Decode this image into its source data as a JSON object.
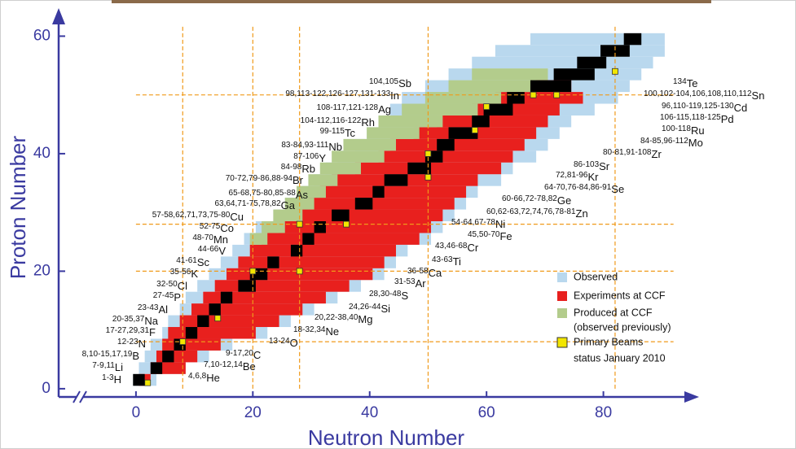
{
  "chart_data": {
    "type": "nuclide",
    "x_label": "Neutron Number",
    "y_label": "Proton Number",
    "xlim": [
      -11,
      94
    ],
    "ylim": [
      -1.4,
      62
    ],
    "xticks": [
      0,
      20,
      40,
      60,
      80
    ],
    "yticks": [
      0,
      20,
      40,
      60
    ],
    "axis_color": "#3a3aa0",
    "z": [
      1,
      3,
      5,
      7,
      9,
      11,
      13,
      15,
      17,
      19,
      21,
      23,
      25,
      27,
      29,
      31,
      33,
      35,
      37,
      39,
      41,
      43,
      45,
      47,
      49,
      51,
      53,
      55,
      57,
      59
    ],
    "series": [
      {
        "name": "Observed",
        "color": "#b9d8ee",
        "ranges": [
          [
            0,
            3
          ],
          [
            1,
            8
          ],
          [
            2,
            12
          ],
          [
            3,
            16
          ],
          [
            5,
            22
          ],
          [
            6,
            26
          ],
          [
            8,
            30
          ],
          [
            9,
            34
          ],
          [
            11,
            38
          ],
          [
            13,
            42
          ],
          [
            15,
            44
          ],
          [
            17,
            46
          ],
          [
            19,
            50
          ],
          [
            21,
            52
          ],
          [
            24,
            54
          ],
          [
            26,
            56
          ],
          [
            29,
            58
          ],
          [
            31,
            62
          ],
          [
            33,
            64
          ],
          [
            35,
            68
          ],
          [
            38,
            70
          ],
          [
            40,
            72
          ],
          [
            42,
            74
          ],
          [
            44,
            78
          ],
          [
            46,
            82
          ],
          [
            50,
            84
          ],
          [
            54,
            86
          ],
          [
            58,
            88
          ],
          [
            62,
            90
          ],
          [
            68,
            90
          ]
        ]
      },
      {
        "name": "Experiments at CCF",
        "color": "#e8201e",
        "ranges": [
          [
            1,
            2
          ],
          [
            3,
            8
          ],
          [
            4,
            10
          ],
          [
            5,
            14
          ],
          [
            6,
            20
          ],
          [
            8,
            24
          ],
          [
            10,
            28
          ],
          [
            12,
            32
          ],
          [
            14,
            36
          ],
          [
            16,
            40
          ],
          [
            18,
            42
          ],
          [
            20,
            44
          ],
          [
            22,
            48
          ],
          [
            25,
            50
          ],
          [
            28,
            52
          ],
          [
            30,
            54
          ],
          [
            32,
            56
          ],
          [
            34,
            58
          ],
          [
            38,
            62
          ],
          [
            42,
            64
          ],
          [
            44,
            66
          ],
          [
            48,
            68
          ],
          [
            52,
            70
          ],
          [
            58,
            72
          ],
          [
            62,
            76
          ],
          [
            68,
            74
          ],
          null,
          null,
          null,
          null
        ]
      },
      {
        "name": "Produced at CCF",
        "color": "#b3cc8c",
        "ranges": [
          null,
          null,
          null,
          null,
          null,
          null,
          null,
          null,
          null,
          null,
          null,
          null,
          [
            20,
            22
          ],
          [
            22,
            25
          ],
          [
            24,
            28
          ],
          [
            26,
            30
          ],
          [
            28,
            32
          ],
          [
            30,
            34
          ],
          [
            32,
            38
          ],
          [
            34,
            42
          ],
          [
            36,
            44
          ],
          [
            40,
            48
          ],
          [
            42,
            52
          ],
          [
            46,
            58
          ],
          [
            50,
            62
          ],
          [
            54,
            68
          ],
          [
            58,
            70
          ],
          null,
          null,
          null
        ]
      },
      {
        "name": "Primary Beams",
        "color": "#f2e600",
        "n": [
          2,
          8,
          14,
          20,
          28,
          28,
          36,
          50,
          50,
          58,
          60,
          68,
          72,
          82
        ],
        "z": [
          1,
          8,
          12,
          20,
          20,
          28,
          28,
          36,
          40,
          44,
          48,
          50,
          50,
          54
        ]
      }
    ],
    "stable": {
      "color": "#000000",
      "ranges": [
        [
          0,
          1
        ],
        [
          3,
          4
        ],
        [
          5,
          6
        ],
        [
          7,
          8
        ],
        [
          9,
          10
        ],
        [
          11,
          12
        ],
        [
          13,
          14
        ],
        [
          15,
          16
        ],
        [
          18,
          20
        ],
        [
          20,
          22
        ],
        [
          23,
          24
        ],
        [
          27,
          28
        ],
        [
          29,
          30
        ],
        [
          31,
          32
        ],
        [
          34,
          36
        ],
        [
          38,
          40
        ],
        [
          41,
          42
        ],
        [
          43,
          46
        ],
        [
          47,
          50
        ],
        [
          50,
          52
        ],
        [
          52,
          54
        ],
        [
          54,
          58
        ],
        [
          58,
          60
        ],
        [
          60,
          64
        ],
        [
          64,
          66
        ],
        [
          68,
          74
        ],
        [
          72,
          78
        ],
        [
          76,
          80
        ],
        [
          80,
          84
        ],
        [
          84,
          86
        ]
      ]
    },
    "magic": [
      8,
      20,
      28,
      50,
      82
    ],
    "magic_color": "#f09a1a",
    "legend_note": "(observed previously)",
    "status": "status January 2010",
    "left_labels": [
      {
        "masses": "104,105",
        "symbol": "Sb"
      },
      {
        "masses": "98,113-122,126-127,131-133",
        "symbol": "In"
      },
      {
        "masses": "108-117,121-128",
        "symbol": "Ag"
      },
      {
        "masses": "104-112,116-122",
        "symbol": "Rh"
      },
      {
        "masses": "99-115",
        "symbol": "Tc"
      },
      {
        "masses": "83-84,93-111",
        "symbol": "Nb"
      },
      {
        "masses": "87-106",
        "symbol": "Y"
      },
      {
        "masses": "84-98",
        "symbol": "Rb"
      },
      {
        "masses": "70-72,79-86,88-94",
        "symbol": "Br"
      },
      {
        "masses": "65-68,75-80,85-88",
        "symbol": "As"
      },
      {
        "masses": "63,64,71-75,78,82",
        "symbol": "Ga"
      },
      {
        "masses": "57-58,62,71,73,75-80",
        "symbol": "Cu"
      },
      {
        "masses": "52-75",
        "symbol": "Co"
      },
      {
        "masses": "48-70",
        "symbol": "Mn"
      },
      {
        "masses": "44-66",
        "symbol": "V"
      },
      {
        "masses": "41-61",
        "symbol": "Sc"
      },
      {
        "masses": "35-56",
        "symbol": "K"
      },
      {
        "masses": "32-50",
        "symbol": "Cl"
      },
      {
        "masses": "27-45",
        "symbol": "P"
      },
      {
        "masses": "23-43",
        "symbol": "Al"
      },
      {
        "masses": "20-35,37",
        "symbol": "Na"
      },
      {
        "masses": "17-27,29,31",
        "symbol": "F"
      },
      {
        "masses": "12-23",
        "symbol": "N"
      },
      {
        "masses": "8,10-15,17,19",
        "symbol": "B"
      },
      {
        "masses": "7-9,11",
        "symbol": "Li"
      },
      {
        "masses": "1-3",
        "symbol": "H"
      }
    ],
    "right_labels": [
      {
        "masses": "134",
        "symbol": "Te"
      },
      {
        "masses": "100,102-104,106,108,110,112",
        "symbol": "Sn"
      },
      {
        "masses": "96,110-119,125-130",
        "symbol": "Cd"
      },
      {
        "masses": "106-115,118-125",
        "symbol": "Pd"
      },
      {
        "masses": "100-118",
        "symbol": "Ru"
      },
      {
        "masses": "84-85,96-112",
        "symbol": "Mo"
      },
      {
        "masses": "80-81,91-108",
        "symbol": "Zr"
      },
      {
        "masses": "86-103",
        "symbol": "Sr"
      },
      {
        "masses": "72,81-96",
        "symbol": "Kr"
      },
      {
        "masses": "64-70,76-84,86-91",
        "symbol": "Se"
      },
      {
        "masses": "60-66,72-78,82",
        "symbol": "Ge"
      },
      {
        "masses": "60,62-63,72,74,76,78-81",
        "symbol": "Zn"
      },
      {
        "masses": "54-64,67-78",
        "symbol": "Ni"
      },
      {
        "masses": "45,50-70",
        "symbol": "Fe"
      },
      {
        "masses": "43,46-68",
        "symbol": "Cr"
      },
      {
        "masses": "43-63",
        "symbol": "Ti"
      },
      {
        "masses": "36-58",
        "symbol": "Ca"
      },
      {
        "masses": "31-53",
        "symbol": "Ar"
      },
      {
        "masses": "28,30-48",
        "symbol": "S"
      },
      {
        "masses": "24,26-44",
        "symbol": "Si"
      },
      {
        "masses": "20,22-38,40",
        "symbol": "Mg"
      },
      {
        "masses": "18-32,34",
        "symbol": "Ne"
      },
      {
        "masses": "13-24",
        "symbol": "O"
      },
      {
        "masses": "9-17,20",
        "symbol": "C"
      },
      {
        "masses": "7,10-12,14",
        "symbol": "Be"
      },
      {
        "masses": "4,6,8",
        "symbol": "He"
      }
    ]
  }
}
